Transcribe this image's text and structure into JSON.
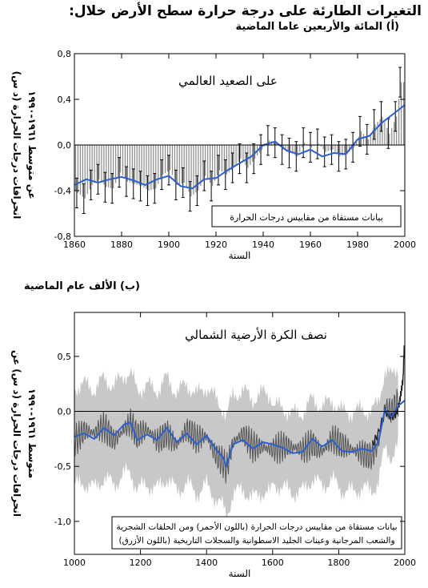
{
  "page": {
    "title": "التغيرات الطارئة على درجة حرارة سطح الأرض خلال:",
    "subtitle_a": "(أ) المائة والأربعين عاما الماضية",
    "subtitle_b": "(ب) الألف عام الماضية"
  },
  "chart_data": [
    {
      "type": "bar",
      "title": "على الصعيد العالمي",
      "xlabel": "السنة",
      "ylabel_line1": "انحرافات درجات الحرارة (د س)",
      "ylabel_line2": "عن متوسط ١٩٦١-١٩٩٠",
      "xlim": [
        1860,
        2000
      ],
      "ylim": [
        -0.8,
        0.8
      ],
      "x_ticks": [
        1860,
        1880,
        1900,
        1920,
        1940,
        1960,
        1980,
        2000
      ],
      "y_ticks": [
        "0,8",
        "0,4",
        "0,0",
        "-0,4",
        "-0,8"
      ],
      "y_tick_values": [
        0.8,
        0.4,
        0.0,
        -0.4,
        -0.8
      ],
      "legend": "بيانات مستقاة من مقاييس درجات الحرارة",
      "legend_position": "bottom-right",
      "series_bars_years": [
        1861,
        1864,
        1867,
        1870,
        1873,
        1876,
        1879,
        1882,
        1885,
        1888,
        1891,
        1894,
        1897,
        1900,
        1903,
        1906,
        1909,
        1912,
        1915,
        1918,
        1921,
        1924,
        1927,
        1930,
        1933,
        1936,
        1939,
        1942,
        1945,
        1948,
        1951,
        1954,
        1957,
        1960,
        1963,
        1966,
        1969,
        1972,
        1975,
        1978,
        1981,
        1984,
        1987,
        1990,
        1993,
        1996,
        1998
      ],
      "series_bars_values": [
        -0.42,
        -0.47,
        -0.35,
        -0.3,
        -0.37,
        -0.38,
        -0.24,
        -0.32,
        -0.34,
        -0.36,
        -0.4,
        -0.38,
        -0.26,
        -0.22,
        -0.35,
        -0.33,
        -0.45,
        -0.4,
        -0.27,
        -0.36,
        -0.22,
        -0.26,
        -0.2,
        -0.12,
        -0.2,
        -0.12,
        -0.04,
        0.04,
        0.02,
        -0.04,
        -0.07,
        -0.1,
        0.02,
        -0.02,
        0.01,
        -0.06,
        -0.04,
        -0.1,
        -0.08,
        -0.02,
        0.12,
        0.05,
        0.18,
        0.25,
        0.1,
        0.25,
        0.55
      ],
      "error_bar": 0.13,
      "smoothed_x": [
        1860,
        1865,
        1870,
        1875,
        1880,
        1885,
        1890,
        1895,
        1900,
        1905,
        1910,
        1915,
        1920,
        1925,
        1930,
        1935,
        1940,
        1945,
        1950,
        1955,
        1960,
        1965,
        1970,
        1975,
        1980,
        1985,
        1990,
        1995,
        2000
      ],
      "smoothed_y": [
        -0.35,
        -0.3,
        -0.33,
        -0.3,
        -0.28,
        -0.31,
        -0.35,
        -0.3,
        -0.27,
        -0.36,
        -0.38,
        -0.3,
        -0.29,
        -0.22,
        -0.16,
        -0.1,
        0.0,
        0.03,
        -0.05,
        -0.08,
        -0.04,
        -0.1,
        -0.07,
        -0.08,
        0.05,
        0.08,
        0.19,
        0.27,
        0.35
      ]
    },
    {
      "type": "line",
      "title": "نصف الكرة الأرضية الشمالي",
      "xlabel": "السنة",
      "ylabel_line1": "انحرافات درجات الحرارة (د س) عن",
      "ylabel_line2": "متوسط ١٩٦١-١٩٩٠",
      "xlim": [
        1000,
        2000
      ],
      "ylim": [
        -1.3,
        0.9
      ],
      "x_ticks": [
        1000,
        1200,
        1400,
        1600,
        1800,
        2000
      ],
      "y_ticks": [
        "0,5",
        "0,0",
        "-0,5",
        "-1,0"
      ],
      "y_tick_values": [
        0.5,
        0.0,
        -0.5,
        -1.0
      ],
      "legend_line1": "بيانات مستقاة من مقاييس درجات الحرارة (باللون الأحمر) ومن الحلقات الشجرية",
      "legend_line2": "والشعب المرجانية وعينات الجليد الاسطوانية والسجلات التاريخية (باللون الأزرق)",
      "legend_position": "bottom",
      "smoothed_x": [
        1000,
        1030,
        1060,
        1090,
        1120,
        1150,
        1170,
        1190,
        1220,
        1250,
        1280,
        1310,
        1340,
        1370,
        1400,
        1430,
        1450,
        1460,
        1480,
        1510,
        1540,
        1570,
        1600,
        1630,
        1660,
        1690,
        1720,
        1750,
        1780,
        1810,
        1840,
        1870,
        1900,
        1920,
        1940,
        1960,
        1980,
        2000
      ],
      "smoothed_y": [
        -0.23,
        -0.2,
        -0.25,
        -0.15,
        -0.22,
        -0.12,
        -0.1,
        -0.26,
        -0.21,
        -0.26,
        -0.15,
        -0.28,
        -0.2,
        -0.3,
        -0.22,
        -0.35,
        -0.42,
        -0.5,
        -0.3,
        -0.26,
        -0.34,
        -0.28,
        -0.3,
        -0.33,
        -0.38,
        -0.37,
        -0.25,
        -0.32,
        -0.26,
        -0.36,
        -0.37,
        -0.34,
        -0.36,
        -0.28,
        0.02,
        -0.05,
        0.05,
        0.1
      ],
      "uncertainty": 0.45,
      "instrumental_x": [
        1902,
        1920,
        1940,
        1960,
        1975,
        1985,
        1990,
        1995,
        1998
      ],
      "instrumental_y": [
        -0.3,
        -0.2,
        0.0,
        -0.05,
        -0.02,
        0.1,
        0.2,
        0.3,
        0.6
      ]
    }
  ]
}
